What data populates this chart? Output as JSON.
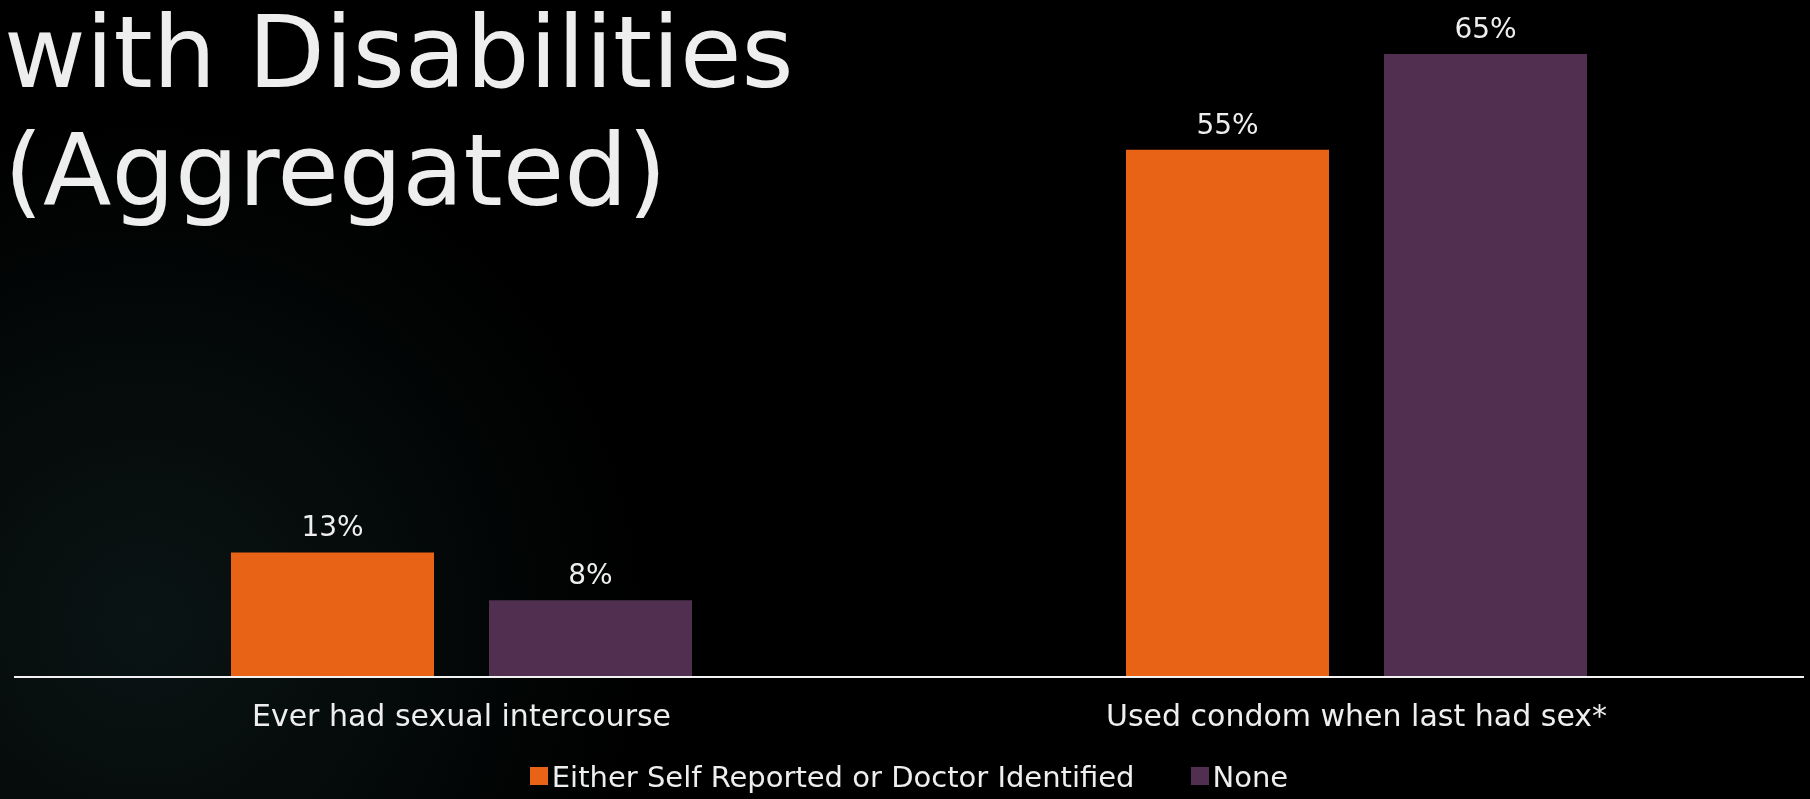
{
  "chart_data": {
    "type": "bar",
    "title": "with Disabilities (Aggregated)",
    "categories": [
      "Ever had sexual intercourse",
      "Used condom when last had sex*"
    ],
    "series": [
      {
        "name": "Either Self Reported or Doctor Identified",
        "color": "#e96316",
        "values": [
          13,
          55
        ],
        "value_labels": [
          "13%",
          "55%"
        ]
      },
      {
        "name": "None",
        "color": "#512f50",
        "values": [
          8,
          65
        ],
        "value_labels": [
          "8%",
          "65%"
        ]
      }
    ],
    "legend": "bottom",
    "tick_labels": "x"
  }
}
